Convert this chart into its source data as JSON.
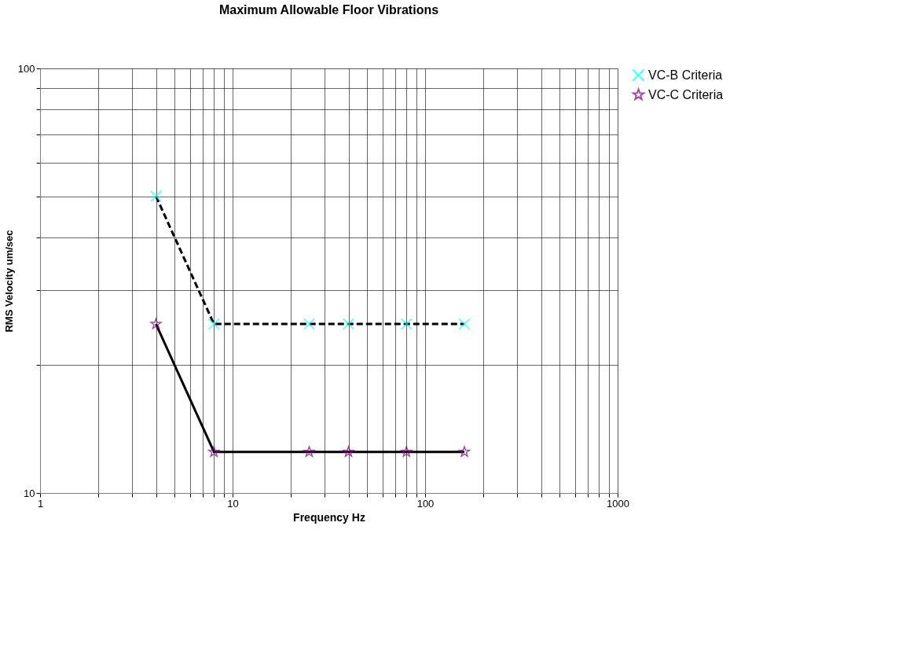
{
  "chart_data": {
    "type": "line",
    "title": "Maximum Allowable Floor Vibrations",
    "xlabel": "Frequency Hz",
    "ylabel": "RMS Velocity um/sec",
    "log": "xy",
    "grid": true,
    "legend": "right",
    "xlim": [
      1,
      1000
    ],
    "ylim": [
      10,
      100
    ],
    "xticks": [
      1,
      {
        "value": 2,
        "label": null
      },
      {
        "value": 3,
        "label": null
      },
      {
        "value": 4,
        "label": null
      },
      {
        "value": 5,
        "label": null
      },
      {
        "value": 6,
        "label": null
      },
      {
        "value": 7,
        "label": null
      },
      {
        "value": 8,
        "label": null
      },
      {
        "value": 9,
        "label": null
      },
      10,
      {
        "value": 20,
        "label": null
      },
      {
        "value": 30,
        "label": null
      },
      {
        "value": 40,
        "label": null
      },
      {
        "value": 50,
        "label": null
      },
      {
        "value": 60,
        "label": null
      },
      {
        "value": 70,
        "label": null
      },
      {
        "value": 80,
        "label": null
      },
      {
        "value": 90,
        "label": null
      },
      100,
      {
        "value": 200,
        "label": null
      },
      {
        "value": 300,
        "label": null
      },
      {
        "value": 400,
        "label": null
      },
      {
        "value": 500,
        "label": null
      },
      {
        "value": 600,
        "label": null
      },
      {
        "value": 700,
        "label": null
      },
      {
        "value": 800,
        "label": null
      },
      {
        "value": 900,
        "label": null
      },
      1000
    ],
    "yticks": [
      10,
      {
        "value": 20,
        "label": null
      },
      {
        "value": 30,
        "label": null
      },
      {
        "value": 40,
        "label": null
      },
      {
        "value": 50,
        "label": null
      },
      {
        "value": 60,
        "label": null
      },
      {
        "value": 70,
        "label": null
      },
      {
        "value": 80,
        "label": null
      },
      {
        "value": 90,
        "label": null
      },
      100
    ],
    "x": [
      4,
      8,
      25,
      40,
      80,
      160
    ],
    "series": [
      {
        "name": "VC-B Criteria",
        "color": "#00ffff",
        "marker": "cross",
        "line_style": "dashed",
        "values": [
          50,
          25,
          25,
          25,
          25,
          25
        ]
      },
      {
        "name": "VC-C Criteria",
        "color": "#800080",
        "marker": "star",
        "line_style": "solid",
        "values": [
          25,
          12.5,
          12.5,
          12.5,
          12.5,
          12.5
        ]
      }
    ]
  }
}
